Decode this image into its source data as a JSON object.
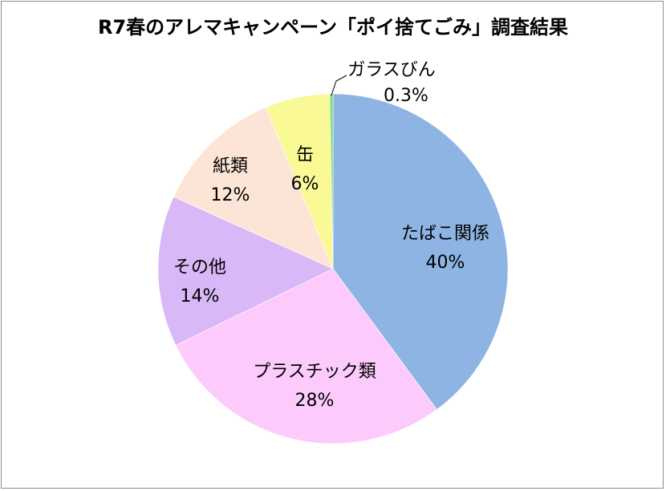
{
  "chart_data": {
    "type": "pie",
    "title": "R7春のアレマキャンペーン「ポイ捨てごみ」調査結果",
    "slices": [
      {
        "label": "たばこ関係",
        "value": 40,
        "value_label": "40%",
        "color": "#8eb4e3"
      },
      {
        "label": "プラスチック類",
        "value": 28,
        "value_label": "28%",
        "color": "#fccbfc"
      },
      {
        "label": "その他",
        "value": 14,
        "value_label": "14%",
        "color": "#d9b8f7"
      },
      {
        "label": "紙類",
        "value": 12,
        "value_label": "12%",
        "color": "#fce5d6"
      },
      {
        "label": "缶",
        "value": 6,
        "value_label": "6%",
        "color": "#f9f996"
      },
      {
        "label": "ガラスびん",
        "value": 0.3,
        "value_label": "0.3%",
        "color": "#7fdc7f"
      }
    ],
    "start": "12 o'clock",
    "direction": "clockwise",
    "legend": "none"
  }
}
